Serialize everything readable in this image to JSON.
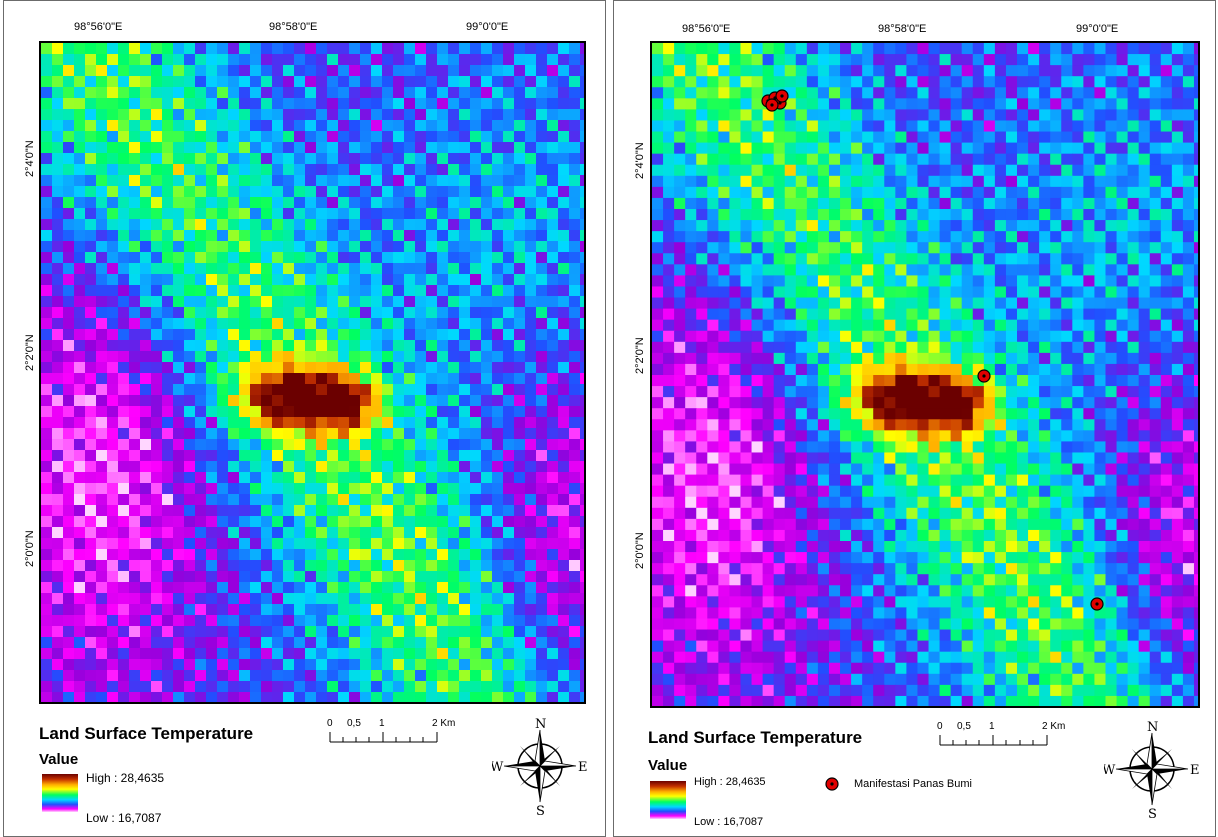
{
  "maps": [
    {
      "id": "left",
      "x_labels": [
        "98°56'0\"E",
        "98°58'0\"E",
        "99°0'0\"E"
      ],
      "y_labels": [
        "2°4'0\"N",
        "2°2'0\"N",
        "2°0'0\"N"
      ],
      "title": "Land Surface Temperature",
      "value_label": "Value",
      "high_label": "High : 28,4635",
      "low_label": "Low : 16,7087",
      "scale_labels": [
        "0",
        "0,5",
        "1",
        "2 Km"
      ],
      "compass": {
        "n": "N",
        "s": "S",
        "e": "E",
        "w": "W"
      },
      "has_points": false
    },
    {
      "id": "right",
      "x_labels": [
        "98°56'0\"E",
        "98°58'0\"E",
        "99°0'0\"E"
      ],
      "y_labels": [
        "2°4'0\"N",
        "2°2'0\"N",
        "2°0'0\"N"
      ],
      "title": "Land Surface Temperature",
      "value_label": "Value",
      "high_label": "High : 28,4635",
      "low_label": "Low : 16,7087",
      "scale_labels": [
        "0",
        "0,5",
        "1",
        "2 Km"
      ],
      "compass": {
        "n": "N",
        "s": "S",
        "e": "E",
        "w": "W"
      },
      "has_points": true,
      "point_legend": "Manifestasi Panas Bumi"
    }
  ],
  "colors": {
    "high": "#6b0000",
    "mid_hot": "#ffae00",
    "warm": "#ffff00",
    "mid": "#00ff60",
    "cool": "#00d8ff",
    "cold": "#2050ff",
    "coldest": "#ff00ff",
    "lowest": "#ffd6ff",
    "point": "#e00000"
  }
}
